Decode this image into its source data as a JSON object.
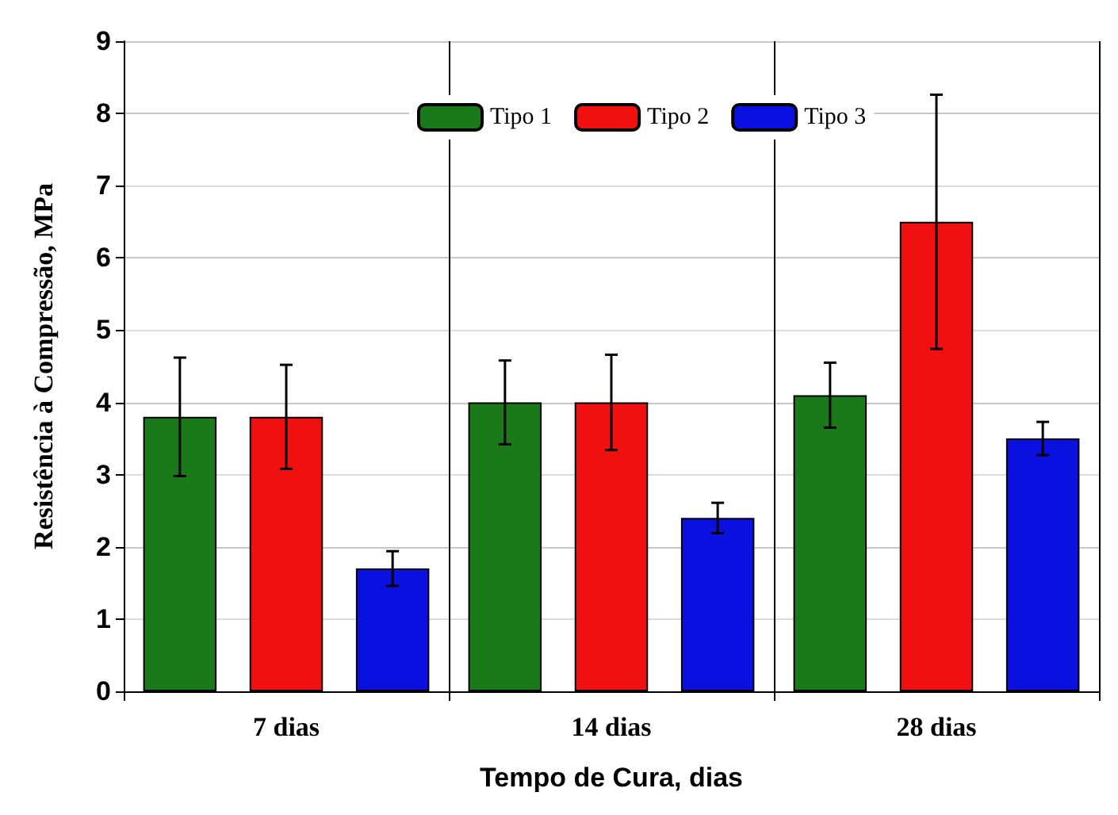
{
  "chart_data": {
    "type": "bar",
    "xlabel": "Tempo de Cura, dias",
    "ylabel": "Resistência à Compressão, MPa",
    "categories": [
      "7 dias",
      "14 dias",
      "28 dias"
    ],
    "series": [
      {
        "name": "Tipo 1",
        "color": "#1a7a1a",
        "values": [
          3.8,
          4.0,
          4.1
        ],
        "errors": [
          0.82,
          0.58,
          0.45
        ]
      },
      {
        "name": "Tipo 2",
        "color": "#f01010",
        "values": [
          3.8,
          4.0,
          6.5
        ],
        "errors": [
          0.72,
          0.66,
          1.76
        ]
      },
      {
        "name": "Tipo 3",
        "color": "#0a10e0",
        "values": [
          1.7,
          2.4,
          3.5
        ],
        "errors": [
          0.24,
          0.21,
          0.23
        ]
      }
    ],
    "ylim": [
      0,
      9
    ],
    "yticks": [
      0,
      1,
      2,
      3,
      4,
      5,
      6,
      7,
      8,
      9
    ],
    "grid": true,
    "legend": "top"
  }
}
